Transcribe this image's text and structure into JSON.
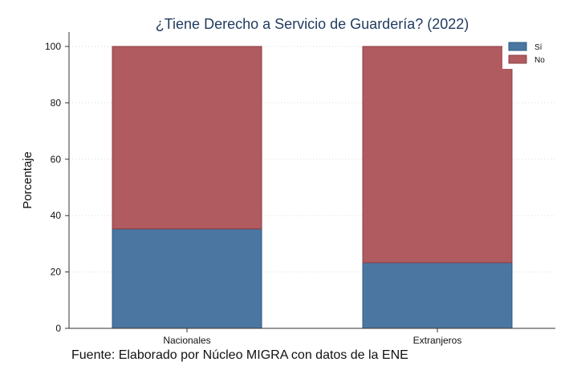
{
  "chart_data": {
    "type": "bar",
    "stacked": true,
    "title": "¿Tiene Derecho a Servicio de Guardería? (2022)",
    "xlabel": "",
    "ylabel": "Porcentaje",
    "ylim": [
      0,
      100
    ],
    "yticks": [
      "0",
      "20",
      "40",
      "60",
      "80",
      "100"
    ],
    "categories": [
      "Nacionales",
      "Extranjeros"
    ],
    "series": [
      {
        "name": "Sí",
        "values": [
          35.3,
          23.3
        ],
        "color": "#4a76a1"
      },
      {
        "name": "No",
        "values": [
          64.7,
          76.7
        ],
        "color": "#b05b5f"
      }
    ],
    "grid": true,
    "legend_position": "top-right",
    "source": "Fuente: Elaborado por Núcleo MIGRA con datos de la ENE"
  }
}
